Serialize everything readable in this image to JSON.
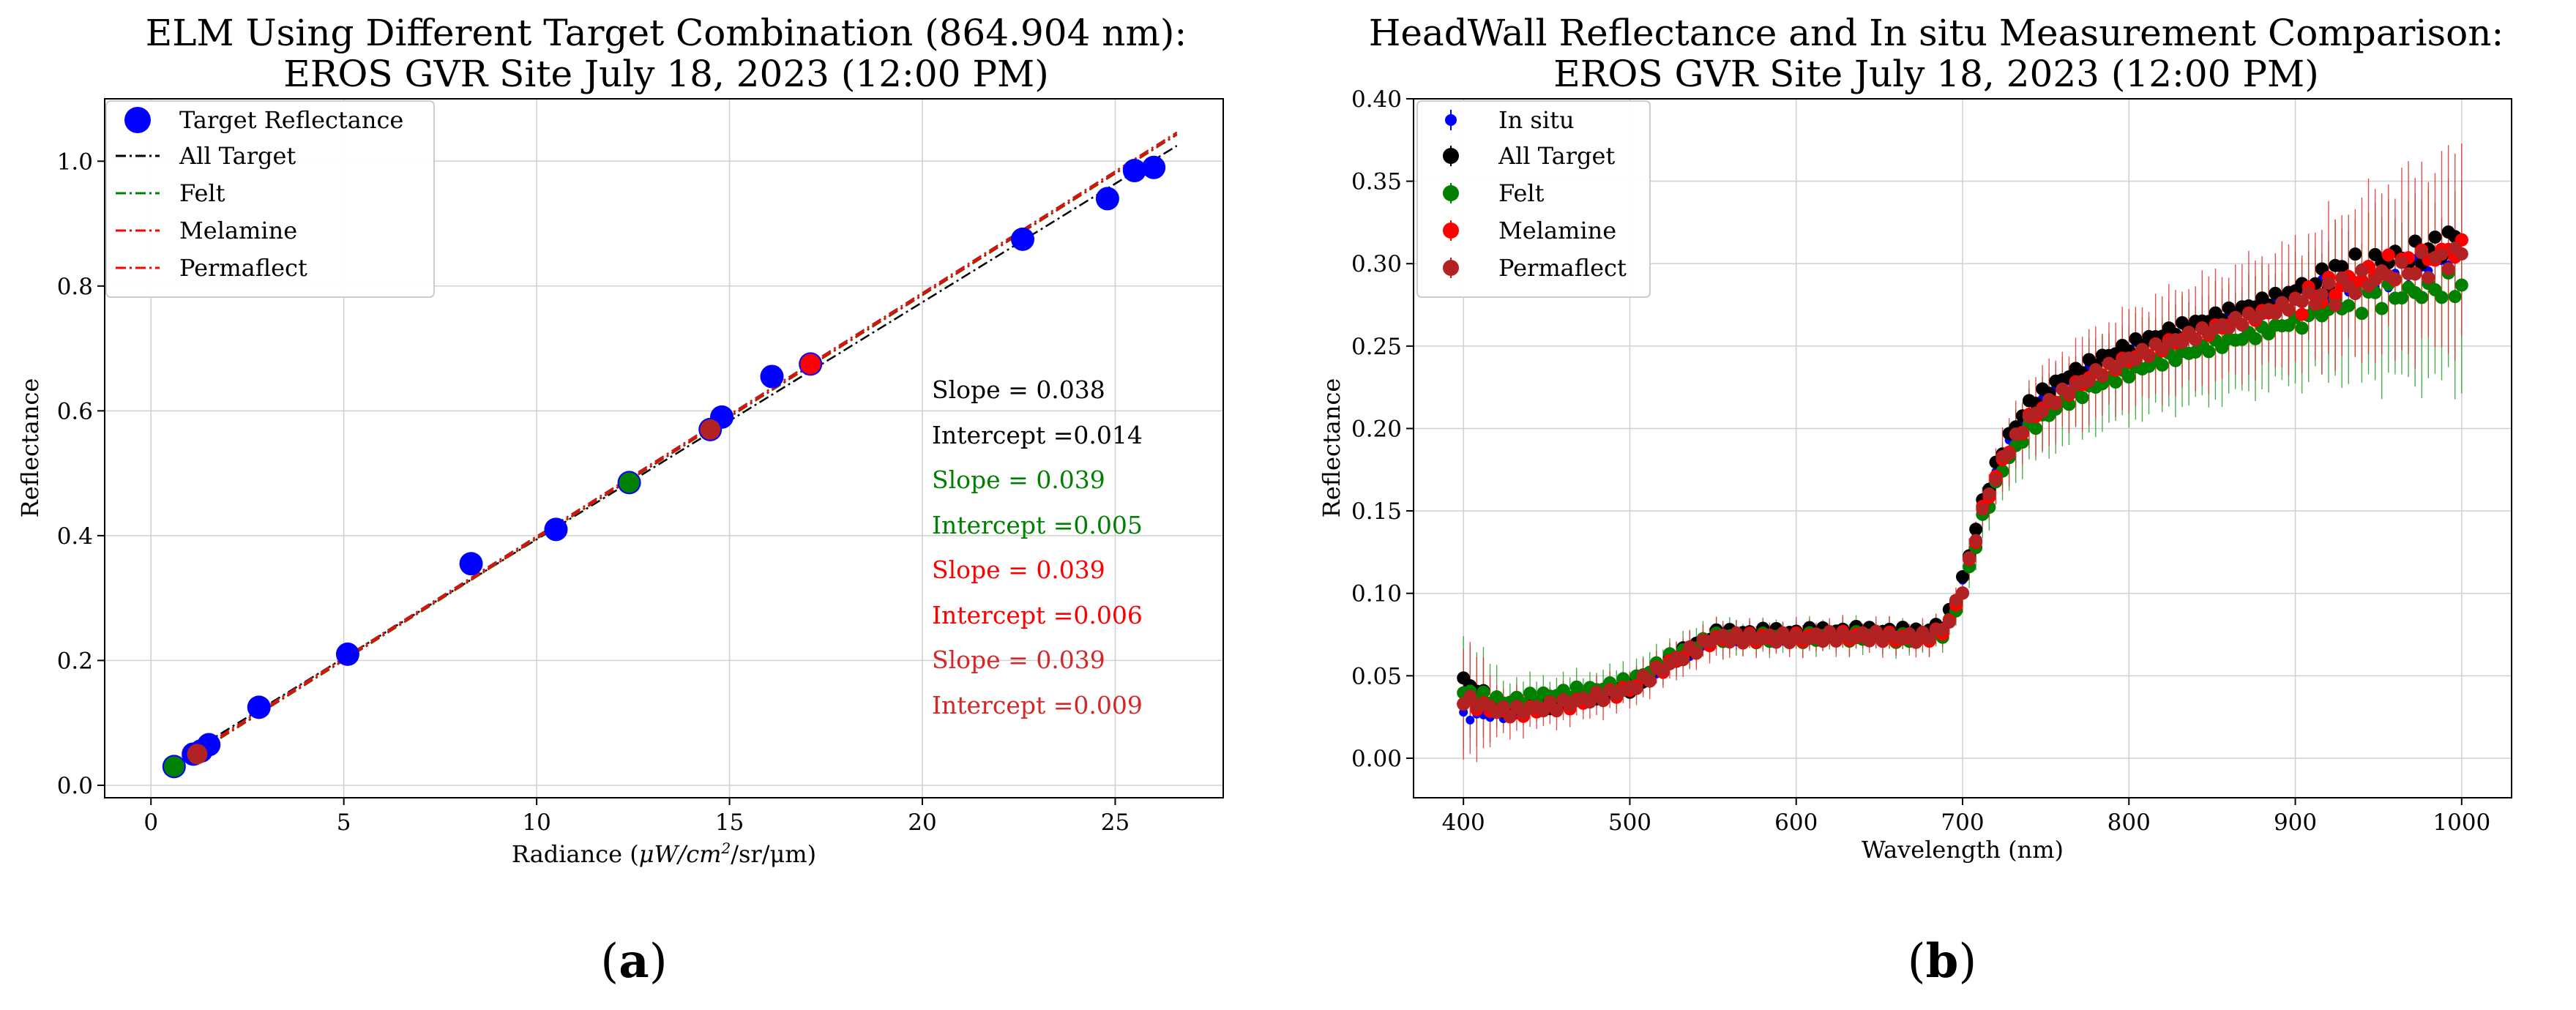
{
  "chart_data": [
    {
      "type": "scatter",
      "title": "ELM Using Different Target Combination (864.904 nm):",
      "subtitle": "EROS GVR Site July 18, 2023 (12:00 PM)",
      "xlabel": "Radiance (μW/cm²/sr/μm)",
      "xlabel_parts": {
        "prefix": "Radiance (",
        "unit": "μW/cm",
        "sup": "2",
        "suffix": "/sr/μm)"
      },
      "ylabel": "Reflectance",
      "xlim": [
        -1.2,
        27.8
      ],
      "ylim": [
        -0.02,
        1.1
      ],
      "xticks": [
        0,
        5,
        10,
        15,
        20,
        25
      ],
      "yticks": [
        0.0,
        0.2,
        0.4,
        0.6,
        0.8,
        1.0
      ],
      "xtick_labels": [
        "0",
        "5",
        "10",
        "15",
        "20",
        "25"
      ],
      "ytick_labels": [
        "0.0",
        "0.2",
        "0.4",
        "0.6",
        "0.8",
        "1.0"
      ],
      "grid": true,
      "legend_position": "top-left",
      "target_points": {
        "name": "Target Reflectance",
        "color": "#0000ff",
        "x": [
          0.6,
          1.1,
          1.3,
          1.5,
          2.8,
          5.1,
          8.3,
          10.5,
          12.4,
          14.5,
          14.8,
          16.1,
          17.1,
          22.6,
          24.8,
          25.5,
          26.0
        ],
        "y": [
          0.03,
          0.05,
          0.055,
          0.065,
          0.125,
          0.21,
          0.355,
          0.41,
          0.485,
          0.57,
          0.59,
          0.655,
          0.675,
          0.875,
          0.94,
          0.985,
          0.99
        ]
      },
      "highlight_points": [
        {
          "x": 0.6,
          "y": 0.03,
          "color": "#008000"
        },
        {
          "x": 1.2,
          "y": 0.05,
          "color": "#b22222"
        },
        {
          "x": 12.4,
          "y": 0.485,
          "color": "#008000"
        },
        {
          "x": 14.5,
          "y": 0.57,
          "color": "#b22222"
        },
        {
          "x": 17.1,
          "y": 0.675,
          "color": "#ff0000"
        }
      ],
      "fit_lines": [
        {
          "name": "All Target",
          "slope": 0.038,
          "intercept": 0.014,
          "color": "#000000"
        },
        {
          "name": "Felt",
          "slope": 0.039,
          "intercept": 0.005,
          "color": "#008000"
        },
        {
          "name": "Melamine",
          "slope": 0.039,
          "intercept": 0.006,
          "color": "#ff0000"
        },
        {
          "name": "Permaflect",
          "slope": 0.039,
          "intercept": 0.009,
          "color": "#b22222"
        }
      ],
      "fit_x_range": [
        0.5,
        26.6
      ],
      "legend": [
        "Target Reflectance",
        "All Target",
        "Felt",
        "Melamine",
        "Permaflect"
      ],
      "annotations": [
        {
          "text": "Slope = 0.038",
          "color": "#000000"
        },
        {
          "text": "Intercept =0.014",
          "color": "#000000"
        },
        {
          "text": "Slope = 0.039",
          "color": "#008000"
        },
        {
          "text": "Intercept =0.005",
          "color": "#008000"
        },
        {
          "text": "Slope = 0.039",
          "color": "#ff0000"
        },
        {
          "text": "Intercept =0.006",
          "color": "#ff0000"
        },
        {
          "text": "Slope = 0.039",
          "color": "#d62728"
        },
        {
          "text": "Intercept =0.009",
          "color": "#d62728"
        }
      ],
      "caption": "(a)"
    },
    {
      "type": "line",
      "title": "HeadWall Reflectance and In situ Measurement Comparison:",
      "subtitle": "EROS GVR Site July 18, 2023 (12:00 PM)",
      "xlabel": "Wavelength (nm)",
      "ylabel": "Reflectance",
      "xlim": [
        370,
        1030
      ],
      "ylim": [
        -0.024,
        0.4
      ],
      "xticks": [
        400,
        500,
        600,
        700,
        800,
        900,
        1000
      ],
      "yticks": [
        0.0,
        0.05,
        0.1,
        0.15,
        0.2,
        0.25,
        0.3,
        0.35,
        0.4
      ],
      "xtick_labels": [
        "400",
        "500",
        "600",
        "700",
        "800",
        "900",
        "1000"
      ],
      "ytick_labels": [
        "0.00",
        "0.05",
        "0.10",
        "0.15",
        "0.20",
        "0.25",
        "0.30",
        "0.35",
        "0.40"
      ],
      "grid": true,
      "legend_position": "top-left",
      "legend": [
        "In situ",
        "All Target",
        "Felt",
        "Melamine",
        "Permaflect"
      ],
      "x": [
        400,
        425,
        450,
        475,
        500,
        525,
        550,
        575,
        600,
        625,
        650,
        675,
        690,
        700,
        712,
        725,
        740,
        760,
        780,
        800,
        825,
        850,
        875,
        900,
        925,
        950,
        975,
        1000
      ],
      "series": [
        {
          "name": "In situ",
          "color": "#0000ff",
          "values": [
            0.025,
            0.027,
            0.032,
            0.037,
            0.043,
            0.058,
            0.073,
            0.074,
            0.074,
            0.076,
            0.076,
            0.075,
            0.08,
            0.105,
            0.15,
            0.185,
            0.21,
            0.225,
            0.238,
            0.248,
            0.258,
            0.265,
            0.272,
            0.279,
            0.284,
            0.29,
            0.298,
            0.305
          ]
        },
        {
          "name": "All Target",
          "color": "#000000",
          "values": [
            0.047,
            0.03,
            0.032,
            0.037,
            0.043,
            0.06,
            0.075,
            0.076,
            0.076,
            0.077,
            0.077,
            0.076,
            0.082,
            0.108,
            0.155,
            0.19,
            0.215,
            0.23,
            0.241,
            0.25,
            0.259,
            0.267,
            0.275,
            0.283,
            0.295,
            0.302,
            0.306,
            0.318
          ]
        },
        {
          "name": "Felt",
          "color": "#008000",
          "values": [
            0.04,
            0.034,
            0.038,
            0.041,
            0.046,
            0.061,
            0.073,
            0.073,
            0.073,
            0.074,
            0.074,
            0.072,
            0.077,
            0.1,
            0.145,
            0.178,
            0.2,
            0.215,
            0.226,
            0.234,
            0.243,
            0.25,
            0.257,
            0.265,
            0.275,
            0.28,
            0.283,
            0.287
          ]
        },
        {
          "name": "Melamine",
          "color": "#ff0000",
          "values": [
            0.035,
            0.027,
            0.03,
            0.035,
            0.042,
            0.058,
            0.072,
            0.073,
            0.073,
            0.074,
            0.074,
            0.072,
            0.078,
            0.102,
            0.15,
            0.183,
            0.206,
            0.221,
            0.233,
            0.242,
            0.252,
            0.26,
            0.268,
            0.276,
            0.286,
            0.296,
            0.302,
            0.31
          ]
        },
        {
          "name": "Permaflect",
          "color": "#b22222",
          "values": [
            0.036,
            0.028,
            0.031,
            0.036,
            0.042,
            0.058,
            0.073,
            0.073,
            0.073,
            0.074,
            0.074,
            0.073,
            0.079,
            0.103,
            0.15,
            0.183,
            0.206,
            0.221,
            0.233,
            0.242,
            0.252,
            0.26,
            0.268,
            0.276,
            0.284,
            0.292,
            0.298,
            0.306
          ]
        }
      ],
      "error_spread": [
        0.04,
        0.015,
        0.012,
        0.012,
        0.012,
        0.012,
        0.012,
        0.01,
        0.01,
        0.01,
        0.01,
        0.01,
        0.01,
        0.012,
        0.015,
        0.02,
        0.025,
        0.028,
        0.03,
        0.032,
        0.034,
        0.036,
        0.038,
        0.04,
        0.048,
        0.055,
        0.06,
        0.065
      ],
      "caption": "(b)"
    }
  ]
}
